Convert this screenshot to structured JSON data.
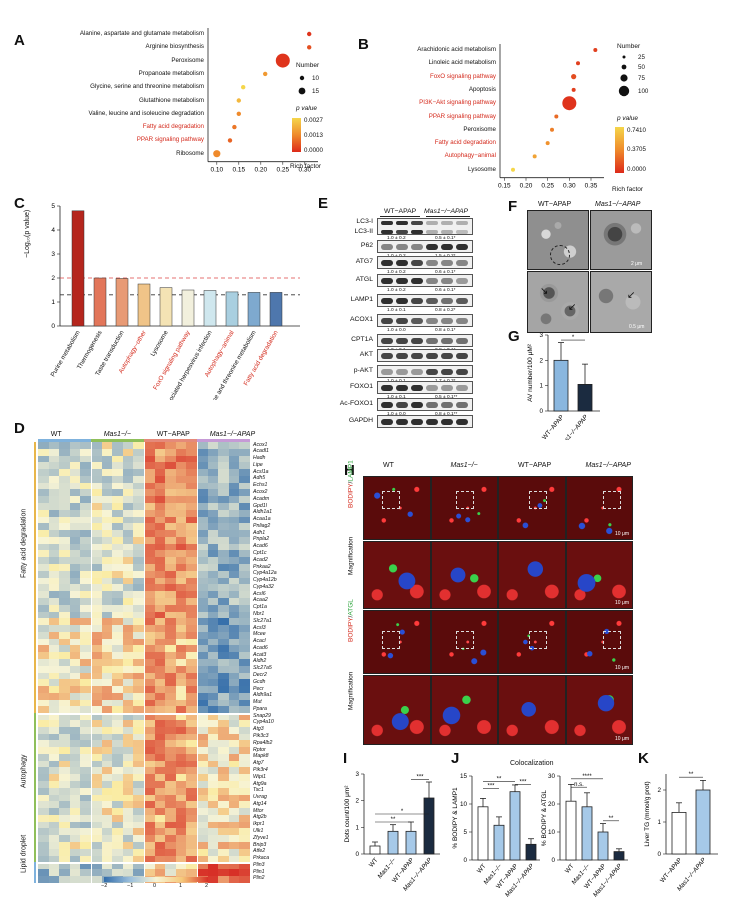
{
  "panel_labels": {
    "A": "A",
    "B": "B",
    "C": "C",
    "D": "D",
    "E": "E",
    "F": "F",
    "G": "G",
    "H": "H",
    "I": "I",
    "J": "J",
    "K": "K"
  },
  "colors": {
    "red_term": "#d42a1c",
    "bar_wt": "#ffffff",
    "bar_mas1": "#7fb2dd",
    "dark_bar": "#1b2b40"
  },
  "panel_a": {
    "xlabel": "Rich factor",
    "legend_number_title": "Number",
    "legend_sizes": [
      "10",
      "15"
    ],
    "legend_p_title": "p value",
    "legend_p_ticks": [
      "0.0027",
      "0.0013",
      "0.0000"
    ],
    "xticks": [
      "0.10",
      "0.15",
      "0.20",
      "0.25",
      "0.30"
    ],
    "terms": [
      {
        "name": "Alanine, aspartate and glutamate metabolism",
        "red": false
      },
      {
        "name": "Arginine biosynthesis",
        "red": false
      },
      {
        "name": "Peroxisome",
        "red": false
      },
      {
        "name": "Propanoate metabolism",
        "red": false
      },
      {
        "name": "Glycine, serine and threonine metabolism",
        "red": false
      },
      {
        "name": "Glutathione metabolism",
        "red": false
      },
      {
        "name": "Valine, leucine and isoleucine degradation",
        "red": false
      },
      {
        "name": "Fatty acid degradation",
        "red": true
      },
      {
        "name": "PPAR signaling pathway",
        "red": true
      },
      {
        "name": "Ribosome",
        "red": false
      }
    ]
  },
  "panel_b": {
    "xlabel": "Rich factor",
    "legend_number_title": "Number",
    "legend_sizes": [
      "25",
      "50",
      "75",
      "100"
    ],
    "legend_p_title": "p value",
    "legend_p_ticks": [
      "0.7410",
      "0.3705",
      "0.0000"
    ],
    "xticks": [
      "0.15",
      "0.20",
      "0.25",
      "0.30",
      "0.35"
    ],
    "terms": [
      {
        "name": "Arachidonic acid metabolism",
        "red": false
      },
      {
        "name": "Linoleic acid metabolism",
        "red": false
      },
      {
        "name": "FoxO signaling pathway",
        "red": true
      },
      {
        "name": "Apoptosis",
        "red": false
      },
      {
        "name": "PI3K−Akt signaling pathway",
        "red": true
      },
      {
        "name": "PPAR signaling pathway",
        "red": true
      },
      {
        "name": "Peroxisome",
        "red": false
      },
      {
        "name": "Fatty acid degradation",
        "red": true
      },
      {
        "name": "Autophagy−animal",
        "red": true
      },
      {
        "name": "Lysosome",
        "red": false
      }
    ]
  },
  "chart_data": [
    {
      "type": "scatter",
      "title": "A",
      "xlabel": "Rich factor",
      "ylabel": "",
      "series": [
        {
          "name": "KEGG enrichment",
          "y": [
            "Alanine, aspartate and glutamate metabolism",
            "Arginine biosynthesis",
            "Peroxisome",
            "Propanoate metabolism",
            "Glycine, serine and threonine metabolism",
            "Glutathione metabolism",
            "Valine, leucine and isoleucine degradation",
            "Fatty acid degradation",
            "PPAR signaling pathway",
            "Ribosome"
          ],
          "x": [
            0.31,
            0.31,
            0.25,
            0.21,
            0.16,
            0.15,
            0.15,
            0.14,
            0.13,
            0.1
          ],
          "number": [
            10,
            8,
            16,
            8,
            9,
            9,
            9,
            9,
            10,
            12
          ],
          "p_value": [
            0.0001,
            0.0004,
            0.0001,
            0.0012,
            0.002,
            0.0016,
            0.001,
            0.0008,
            0.0006,
            0.001
          ]
        }
      ],
      "xlim": [
        0.08,
        0.33
      ]
    },
    {
      "type": "scatter",
      "title": "B",
      "xlabel": "Rich factor",
      "ylabel": "",
      "series": [
        {
          "name": "KEGG enrichment",
          "y": [
            "Arachidonic acid metabolism",
            "Linoleic acid metabolism",
            "FoxO signaling pathway",
            "Apoptosis",
            "PI3K−Akt signaling pathway",
            "PPAR signaling pathway",
            "Peroxisome",
            "Fatty acid degradation",
            "Autophagy−animal",
            "Lysosome"
          ],
          "x": [
            0.36,
            0.32,
            0.31,
            0.31,
            0.3,
            0.27,
            0.26,
            0.25,
            0.22,
            0.17
          ],
          "number": [
            30,
            30,
            40,
            30,
            110,
            25,
            25,
            20,
            30,
            25
          ],
          "p_value": [
            0.05,
            0.05,
            0.08,
            0.05,
            0.02,
            0.15,
            0.2,
            0.25,
            0.3,
            0.45
          ]
        }
      ],
      "xlim": [
        0.14,
        0.38
      ]
    },
    {
      "type": "bar",
      "title": "C",
      "ylabel": "−Log10(p value)",
      "ylim": [
        0,
        5
      ],
      "categories": [
        "Purine metabolism",
        "Thermogenesis",
        "Taste transduction",
        "Autophagy−other",
        "Lysosome",
        "FoxO signaling pathway",
        "Kaposi sarcoma−associated herpesvirus infection",
        "Autophagy−animal",
        "Glycine, serine and threonine metabolism",
        "Fatty acid degradation"
      ],
      "values": [
        4.8,
        2.0,
        1.98,
        1.75,
        1.6,
        1.5,
        1.48,
        1.42,
        1.4,
        1.4
      ],
      "red_categories": [
        "Autophagy−other",
        "FoxO signaling pathway",
        "Autophagy−animal",
        "Fatty acid degradation"
      ],
      "bar_colors": [
        "#b5261d",
        "#e2765a",
        "#e89a75",
        "#f0c488",
        "#f4e3b4",
        "#f2f0dd",
        "#cfe7ee",
        "#a9cfe0",
        "#7ea9cf",
        "#4e77ad"
      ],
      "reference_lines": [
        {
          "y": 2.0,
          "style": "dashed",
          "color": "#d44"
        },
        {
          "y": 1.3,
          "style": "dashed",
          "color": "#333"
        }
      ],
      "yticks": [
        "0",
        "1",
        "2",
        "3",
        "4",
        "5"
      ]
    },
    {
      "type": "bar",
      "title": "G",
      "ylabel": "AV number/100 μM²",
      "categories": [
        "WT−APAP",
        "Mas1−/−APAP"
      ],
      "values": [
        2.0,
        1.05
      ],
      "errors": [
        0.7,
        0.8
      ],
      "ylim": [
        0,
        3
      ],
      "yticks": [
        "0",
        "1",
        "2",
        "3"
      ],
      "significance": "*"
    },
    {
      "type": "bar",
      "title": "I",
      "ylabel": "Dots count/100 μm²",
      "categories": [
        "WT",
        "Mas1−/−",
        "WT−APAP",
        "Mas1−/−APAP"
      ],
      "values": [
        0.3,
        0.85,
        0.85,
        2.1
      ],
      "errors": [
        0.15,
        0.25,
        0.35,
        0.6
      ],
      "ylim": [
        0,
        3
      ],
      "yticks": [
        "0",
        "1",
        "2",
        "3"
      ]
    },
    {
      "type": "bar",
      "title": "J left",
      "ylabel": "% BODIPY & LAMP1",
      "categories": [
        "WT",
        "Mas1−/−",
        "WT−APAP",
        "Mas1−/−APAP"
      ],
      "values": [
        9.5,
        6.2,
        12.2,
        2.8
      ],
      "errors": [
        1.5,
        1.5,
        1.2,
        1.0
      ],
      "ylim": [
        0,
        15
      ],
      "yticks": [
        "0",
        "5",
        "10",
        "15"
      ]
    },
    {
      "type": "bar",
      "title": "J right",
      "ylabel": "% BODIPY & ATGL",
      "categories": [
        "WT",
        "Mas1−/−",
        "WT−APAP",
        "Mas1−/−APAP"
      ],
      "values": [
        21,
        19,
        10,
        3
      ],
      "errors": [
        6,
        5,
        3,
        1
      ],
      "ylim": [
        0,
        30
      ],
      "yticks": [
        "0",
        "10",
        "20",
        "30"
      ]
    },
    {
      "type": "bar",
      "title": "K",
      "ylabel": "Liver TG (mmol/g prot)",
      "categories": [
        "WT−APAP",
        "Mas1−/−APAP"
      ],
      "values": [
        1.3,
        2.0
      ],
      "errors": [
        0.3,
        0.3
      ],
      "ylim": [
        0,
        2.5
      ],
      "yticks": [
        "0",
        "1",
        "2"
      ]
    }
  ],
  "panel_c": {
    "ylabel": "−Log₁₀(p value)"
  },
  "panel_d": {
    "groups": [
      "WT",
      "Mas1−/−",
      "WT−APAP",
      "Mas1−/−APAP"
    ],
    "side_labels": [
      "Fatty acid degradation",
      "Autophagy",
      "Lipid droplet"
    ],
    "colorbar_ticks": [
      "−2",
      "−1",
      "0",
      "1",
      "2"
    ],
    "genes": [
      "Acox1",
      "Acadl1",
      "Hadh",
      "Lipe",
      "Acsl1a",
      "Adh5",
      "Echs1",
      "Acox2",
      "Acadm",
      "Gpd1l",
      "Aldh1a1",
      "Acaa1a",
      "Pnliag2",
      "Adh1",
      "Pnpla2",
      "Acad6",
      "Cpt1c",
      "Acad2",
      "Pnkaa2",
      "Cyp4a12a",
      "Cyp4a12b",
      "Cyp4a32",
      "Acsl6",
      "Acaa2",
      "Cpt1a",
      "Nbr1",
      "Slc27a1",
      "Acsl3",
      "Mcee",
      "Acacl",
      "Acad6",
      "Acat3",
      "Aldh2",
      "Slc27a5",
      "Decr2",
      "Gcdh",
      "Pecr",
      "Aldh9a1",
      "Mut",
      "Ppara",
      "Snap29",
      "Cyp4a10",
      "Atg3",
      "Pik3c3",
      "Rpa4lb2",
      "Rptor",
      "Mapk8",
      "Atg7",
      "Pik3r4",
      "Wipi1",
      "Atg9a",
      "Tsc1",
      "Uvrag",
      "Atg14",
      "Mtor",
      "Atg2b",
      "Ikpr1",
      "Ulk1",
      "Zfyve1",
      "Bnip3",
      "Atfe2",
      "Prkaca",
      "Plin3",
      "Plin1",
      "Plin2"
    ]
  },
  "panel_e": {
    "groups": [
      "WT−APAP",
      "Mas1−/−APAP"
    ],
    "rows": [
      {
        "label": "LC3-I",
        "quant_wt": "",
        "quant_mas": ""
      },
      {
        "label": "LC3-II",
        "quant_wt": "1.0 ± 0.2",
        "quant_mas": "0.5 ± 0.1*"
      },
      {
        "label": "P62",
        "quant_wt": "1.0 ± 0.2",
        "quant_mas": "1.5 ± 0.2*"
      },
      {
        "label": "ATG7",
        "quant_wt": "1.0 ± 0.2",
        "quant_mas": "0.6 ± 0.1*"
      },
      {
        "label": "ATGL",
        "quant_wt": "1.0 ± 0.2",
        "quant_mas": "0.6 ± 0.1*"
      },
      {
        "label": "LAMP1",
        "quant_wt": "1.0 ± 0.1",
        "quant_mas": "0.8 ± 0.2*"
      },
      {
        "label": "ACOX1",
        "quant_wt": "1.0 ± 0.0",
        "quant_mas": "0.8 ± 0.1*"
      },
      {
        "label": "CPT1A",
        "quant_wt": "1.0 ± 0.1",
        "quant_mas": "0.8 ± 0.1*"
      },
      {
        "label": "AKT",
        "quant_wt": "",
        "quant_mas": ""
      },
      {
        "label": "p-AKT",
        "quant_wt": "1.0 ± 0.1",
        "quant_mas": "1.7 ± 0.3*"
      },
      {
        "label": "FOXO1",
        "quant_wt": "1.0 ± 0.1",
        "quant_mas": "0.5 ± 0.1**"
      },
      {
        "label": "Ac-FOXO1",
        "quant_wt": "1.0 ± 0.0",
        "quant_mas": "0.8 ± 0.1**"
      },
      {
        "label": "GAPDH",
        "quant_wt": "",
        "quant_mas": ""
      }
    ]
  },
  "panel_f": {
    "groups": [
      "WT−APAP",
      "Mas1−/−APAP"
    ],
    "scale_bars": [
      "2 μm",
      "0.5 μm"
    ]
  },
  "panel_h": {
    "groups": [
      "WT",
      "Mas1−/−",
      "WT−APAP",
      "Mas1−/−APAP"
    ],
    "row_labels": [
      "BODIPY/LAMP1",
      "Magnification",
      "BODIPY/ATGL",
      "Magnification"
    ],
    "scale_bar": "10 μm"
  },
  "panel_j": {
    "title": "Colocalization"
  }
}
